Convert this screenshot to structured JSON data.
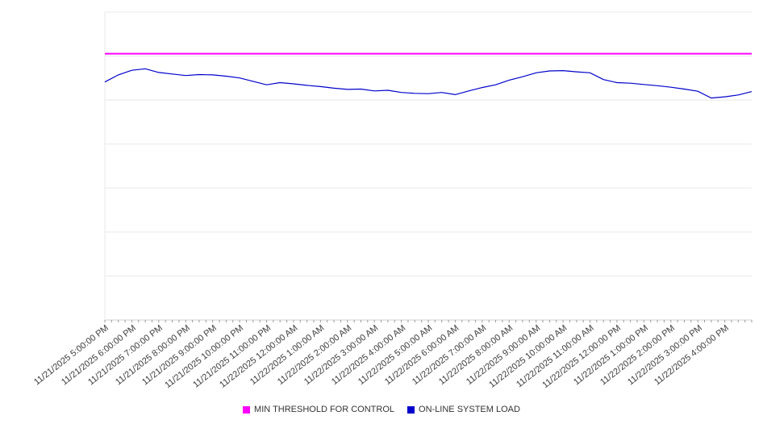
{
  "chart_data": {
    "type": "line",
    "title": "",
    "xlabel": "",
    "ylabel": "",
    "ylim": [
      0,
      100
    ],
    "grid": true,
    "gridline_count": 8,
    "legend_position": "bottom",
    "x_total_hours": 24,
    "x_step_hours": 0.5,
    "x_labels": [
      "11/21/2025 5:00:00 PM",
      "11/21/2025 6:00:00 PM",
      "11/21/2025 7:00:00 PM",
      "11/21/2025 8:00:00 PM",
      "11/21/2025 9:00:00 PM",
      "11/21/2025 10:00:00 PM",
      "11/21/2025 11:00:00 PM",
      "11/22/2025 12:00:00 AM",
      "11/22/2025 1:00:00 AM",
      "11/22/2025 2:00:00 AM",
      "11/22/2025 3:00:00 AM",
      "11/22/2025 4:00:00 AM",
      "11/22/2025 5:00:00 AM",
      "11/22/2025 6:00:00 AM",
      "11/22/2025 7:00:00 AM",
      "11/22/2025 8:00:00 AM",
      "11/22/2025 9:00:00 AM",
      "11/22/2025 10:00:00 AM",
      "11/22/2025 11:00:00 AM",
      "11/22/2025 12:00:00 PM",
      "11/22/2025 1:00:00 PM",
      "11/22/2025 2:00:00 PM",
      "11/22/2025 3:00:00 PM",
      "11/22/2025 4:00:00 PM"
    ],
    "series": [
      {
        "name": "MIN THRESHOLD FOR CONTROL",
        "type": "threshold",
        "color": "#ff00ff",
        "value": 86.5
      },
      {
        "name": "ON-LINE SYSTEM LOAD",
        "type": "line",
        "color": "#0000cc",
        "values": [
          77.3,
          79.6,
          81.1,
          81.6,
          80.4,
          79.9,
          79.4,
          79.7,
          79.6,
          79.2,
          78.6,
          77.5,
          76.4,
          77.1,
          76.7,
          76.2,
          75.8,
          75.3,
          74.9,
          75.0,
          74.4,
          74.6,
          73.9,
          73.6,
          73.5,
          73.9,
          73.2,
          74.4,
          75.5,
          76.4,
          77.9,
          79.0,
          80.3,
          80.9,
          81.0,
          80.6,
          80.3,
          78.1,
          77.1,
          76.9,
          76.5,
          76.1,
          75.6,
          75.0,
          74.3,
          72.1,
          72.5,
          73.1,
          74.2
        ]
      }
    ]
  }
}
